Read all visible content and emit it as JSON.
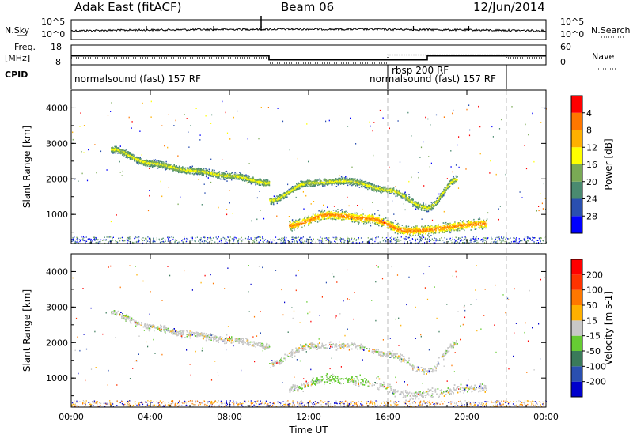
{
  "header": {
    "station": "Adak East (fitACF)",
    "beam": "Beam 06",
    "date": "12/Jun/2014"
  },
  "noise_panel": {
    "left_label": "N.Sky",
    "right_label": "N.Search",
    "ticks_left": [
      "10^5",
      "10^0"
    ],
    "ticks_right": [
      "10^5",
      "10^0"
    ]
  },
  "freq_panel": {
    "left_label_1": "Freq.",
    "left_label_2": "[MHz]",
    "ticks_left": [
      "18",
      "8"
    ],
    "right_label": "Nave",
    "ticks_right": [
      "60",
      "0"
    ],
    "freq_segments": [
      {
        "start": 0.0,
        "end": 10.0,
        "freq": 12.5
      },
      {
        "start": 10.0,
        "end": 18.0,
        "freq": 10.5
      },
      {
        "start": 18.0,
        "end": 24.0,
        "freq": 12.5
      }
    ],
    "nave_segments": [
      {
        "start": 0.0,
        "end": 10.0,
        "nave": 20
      },
      {
        "start": 10.0,
        "end": 16.0,
        "nave": 0
      },
      {
        "start": 16.0,
        "end": 18.0,
        "nave": 30
      },
      {
        "start": 18.0,
        "end": 22.0,
        "nave": 30
      },
      {
        "start": 22.0,
        "end": 24.0,
        "nave": 20
      }
    ]
  },
  "cpid": {
    "label": "CPID",
    "modes": [
      {
        "text": "normalsound (fast) 157 RF",
        "start": 0.0
      },
      {
        "text": "rbsp 200 RF",
        "start": 16.0
      },
      {
        "text": "normalsound (fast) 157 RF",
        "start": 16.0
      }
    ],
    "boundaries": [
      16.0,
      22.0
    ]
  },
  "chart_data": [
    {
      "type": "heatmap",
      "title": "",
      "ylabel": "Slant Range [km]",
      "ylim": [
        180,
        4500
      ],
      "yticks": [
        "1000",
        "2000",
        "3000",
        "4000"
      ],
      "xlim": [
        "00:00",
        "24:00"
      ],
      "colorbar": {
        "label": "Power [dB]",
        "ticks": [
          "4",
          "8",
          "12",
          "16",
          "20",
          "24",
          "28"
        ],
        "colors": [
          "#0000ff",
          "#2a4fb0",
          "#4a8a70",
          "#7aaa55",
          "#ffff00",
          "#ffb000",
          "#ff7700",
          "#ff0000"
        ],
        "range": [
          0,
          30
        ]
      },
      "scatter_bands": [
        {
          "name": "upper trace",
          "points": [
            [
              2.0,
              2850
            ],
            [
              4.0,
              2450
            ],
            [
              6.0,
              2250
            ],
            [
              8.0,
              2100
            ],
            [
              10.0,
              1900
            ]
          ]
        },
        {
          "name": "dip trace",
          "points": [
            [
              10.0,
              1400
            ],
            [
              12.0,
              1900
            ],
            [
              14.0,
              1950
            ],
            [
              16.0,
              1700
            ],
            [
              18.0,
              1200
            ],
            [
              19.5,
              2000
            ]
          ]
        },
        {
          "name": "lower trace",
          "points": [
            [
              11.0,
              700
            ],
            [
              13.0,
              1000
            ],
            [
              15.0,
              900
            ],
            [
              17.0,
              550
            ],
            [
              21.0,
              750
            ]
          ]
        }
      ]
    },
    {
      "type": "heatmap",
      "title": "",
      "ylabel": "Slant Range [km]",
      "ylim": [
        180,
        4500
      ],
      "yticks": [
        "1000",
        "2000",
        "3000",
        "4000"
      ],
      "xlabel": "Time UT",
      "xticks": [
        "00:00",
        "04:00",
        "08:00",
        "12:00",
        "16:00",
        "20:00",
        "00:00"
      ],
      "xlim": [
        "00:00",
        "24:00"
      ],
      "colorbar": {
        "label": "Velocity [m s-1]",
        "ticks": [
          "200",
          "100",
          "50",
          "15",
          "-15",
          "-50",
          "-100",
          "-200"
        ],
        "colors": [
          "#0000cc",
          "#2a4fb0",
          "#3a7a5a",
          "#66cc33",
          "#c8c8c8",
          "#ffb000",
          "#ff7700",
          "#ff3300",
          "#ff0000"
        ],
        "range": [
          -250,
          250
        ]
      }
    }
  ]
}
